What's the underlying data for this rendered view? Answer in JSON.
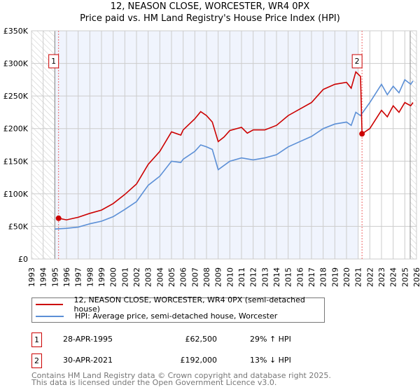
{
  "title": "12, NEASON CLOSE, WORCESTER, WR4 0PX",
  "subtitle": "Price paid vs. HM Land Registry's House Price Index (HPI)",
  "colors": {
    "property": "#cc0000",
    "hpi": "#5b8fd6",
    "shade": "#f0f4fd"
  },
  "chart_data": {
    "type": "line",
    "title": "12, NEASON CLOSE, WORCESTER, WR4 0PX",
    "ylabel": "",
    "xlabel": "",
    "xlim": [
      1993,
      2026
    ],
    "ylim": [
      0,
      350000
    ],
    "y_ticks": [
      {
        "v": 0,
        "label": "£0"
      },
      {
        "v": 50000,
        "label": "£50K"
      },
      {
        "v": 100000,
        "label": "£100K"
      },
      {
        "v": 150000,
        "label": "£150K"
      },
      {
        "v": 200000,
        "label": "£200K"
      },
      {
        "v": 250000,
        "label": "£250K"
      },
      {
        "v": 300000,
        "label": "£300K"
      },
      {
        "v": 350000,
        "label": "£350K"
      }
    ],
    "x_ticks": [
      "1993",
      "1994",
      "1995",
      "1996",
      "1997",
      "1998",
      "1999",
      "2000",
      "2001",
      "2002",
      "2003",
      "2004",
      "2005",
      "2006",
      "2007",
      "2008",
      "2009",
      "2010",
      "2011",
      "2012",
      "2013",
      "2014",
      "2015",
      "2016",
      "2017",
      "2018",
      "2019",
      "2020",
      "2021",
      "2022",
      "2023",
      "2024",
      "2025",
      "2026"
    ],
    "grid": true,
    "series": [
      {
        "name": "12, NEASON CLOSE, WORCESTER, WR4 0PX (semi-detached house)",
        "color": "#cc0000",
        "x": [
          1995.32,
          1996,
          1997,
          1998,
          1999,
          2000,
          2001,
          2002,
          2003,
          2004,
          2005,
          2005.8,
          2006,
          2007,
          2007.5,
          2008,
          2008.5,
          2009,
          2009.5,
          2010,
          2011,
          2011.5,
          2012,
          2013,
          2014,
          2015,
          2016,
          2017,
          2018,
          2019,
          2020,
          2020.4,
          2020.8,
          2021.2,
          2021.33,
          2022,
          2023,
          2023.5,
          2024,
          2024.5,
          2025,
          2025.5,
          2025.7
        ],
        "y": [
          62500,
          60000,
          64000,
          70000,
          75000,
          85000,
          99000,
          115000,
          145000,
          165000,
          195000,
          190000,
          198000,
          215000,
          226000,
          220000,
          210000,
          180000,
          187000,
          197000,
          202000,
          193000,
          198000,
          198000,
          205000,
          220000,
          230000,
          240000,
          260000,
          268000,
          271000,
          262000,
          287000,
          280000,
          192000,
          200000,
          228000,
          218000,
          235000,
          225000,
          240000,
          235000,
          240000
        ]
      },
      {
        "name": "HPI: Average price, semi-detached house, Worcester",
        "color": "#5b8fd6",
        "x": [
          1995,
          1996,
          1997,
          1998,
          1999,
          2000,
          2001,
          2002,
          2003,
          2004,
          2005,
          2005.8,
          2006,
          2007,
          2007.5,
          2008,
          2008.5,
          2009,
          2010,
          2011,
          2012,
          2013,
          2014,
          2015,
          2016,
          2017,
          2018,
          2019,
          2020,
          2020.4,
          2020.8,
          2021.2,
          2022,
          2023,
          2023.5,
          2024,
          2024.5,
          2025,
          2025.5,
          2025.7
        ],
        "y": [
          46000,
          47000,
          49000,
          54000,
          58000,
          65000,
          76000,
          88000,
          113000,
          127000,
          150000,
          148000,
          153000,
          165000,
          175000,
          172000,
          168000,
          137000,
          150000,
          155000,
          152000,
          155000,
          160000,
          172000,
          180000,
          188000,
          200000,
          207000,
          210000,
          205000,
          225000,
          220000,
          240000,
          268000,
          252000,
          265000,
          255000,
          275000,
          268000,
          273000
        ]
      }
    ],
    "sales": [
      {
        "id": "1",
        "x": 1995.32,
        "y": 62500
      },
      {
        "id": "2",
        "x": 2021.33,
        "y": 192000
      }
    ],
    "hatched_before": 1995.0,
    "hatched_after": 2025.46,
    "shaded_range": [
      1995.0,
      2021.0
    ],
    "legend_placement": "below"
  },
  "legend": {
    "property": "12, NEASON CLOSE, WORCESTER, WR4 0PX (semi-detached house)",
    "hpi": "HPI: Average price, semi-detached house, Worcester"
  },
  "transactions": [
    {
      "id": "1",
      "date": "28-APR-1995",
      "price": "£62,500",
      "hpi": "29% ↑ HPI"
    },
    {
      "id": "2",
      "date": "30-APR-2021",
      "price": "£192,000",
      "hpi": "13% ↓ HPI"
    }
  ],
  "footer": {
    "line1": "Contains HM Land Registry data © Crown copyright and database right 2025.",
    "line2": "This data is licensed under the Open Government Licence v3.0."
  }
}
